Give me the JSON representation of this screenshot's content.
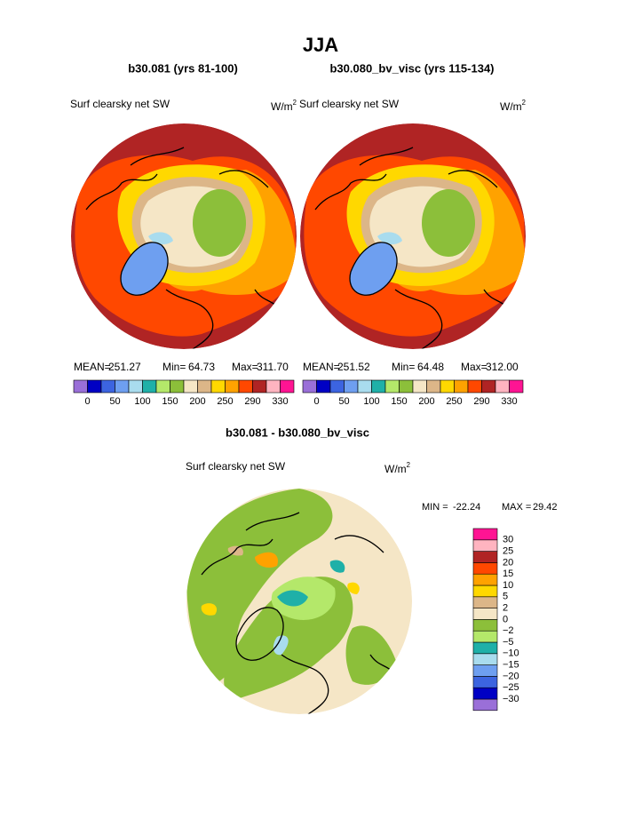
{
  "title": "JJA",
  "colors": [
    "#9a6fd8",
    "#0000c4",
    "#3c64e0",
    "#6e9ff0",
    "#a9dcee",
    "#1fb0a8",
    "#b4e86a",
    "#8cbf3a",
    "#f5e6c6",
    "#dcb688",
    "#ffd800",
    "#ffa200",
    "#ff4800",
    "#b02424",
    "#ffb4c0",
    "#ff1493"
  ],
  "panels": [
    {
      "title": "b30.081 (yrs 81-100)",
      "variable": "Surf clearsky net SW",
      "units": "W/m",
      "units_exponent": "2",
      "stats": [
        "MEAN=",
        "251.27",
        "Min=",
        "64.73",
        "Max=",
        "311.70"
      ],
      "colorbar_labels": [
        "0",
        "50",
        "100",
        "150",
        "200",
        "250",
        "290",
        "330"
      ]
    },
    {
      "title": "b30.080_bv_visc (yrs 115-134)",
      "variable": "Surf clearsky net SW",
      "units": "W/m",
      "units_exponent": "2",
      "stats": [
        "MEAN=",
        "251.52",
        "Min=",
        "64.48",
        "Max=",
        "312.00"
      ],
      "colorbar_labels": [
        "0",
        "50",
        "100",
        "150",
        "200",
        "250",
        "290",
        "330"
      ]
    }
  ],
  "difference": {
    "title": "b30.081 - b30.080_bv_visc",
    "variable": "Surf clearsky net SW",
    "units": "W/m",
    "units_exponent": "2",
    "stats": [
      "MIN =",
      "-22.24",
      "MAX =",
      "29.42"
    ],
    "colorbar_labels": [
      "30",
      "25",
      "20",
      "15",
      "10",
      "5",
      "2",
      "0",
      "−2",
      "−5",
      "−10",
      "−15",
      "−20",
      "−25",
      "−30"
    ]
  }
}
